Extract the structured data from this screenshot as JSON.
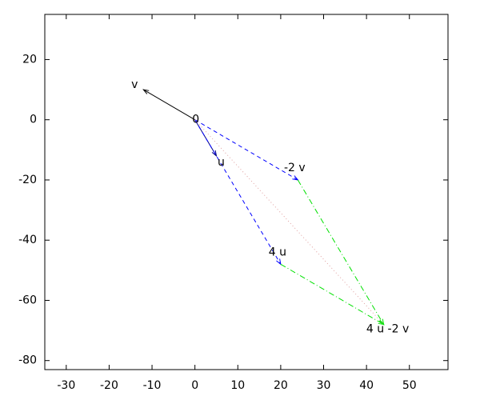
{
  "chart_data": {
    "type": "vector",
    "xlim": [
      -35,
      59
    ],
    "ylim": [
      -83,
      35
    ],
    "xticks": [
      -30,
      -20,
      -10,
      0,
      10,
      20,
      30,
      40,
      50
    ],
    "yticks": [
      20,
      0,
      -20,
      -40,
      -60,
      -80
    ],
    "series": [
      {
        "color": "#000000",
        "dash": "solid",
        "arrow": true,
        "x": [
          0,
          -12
        ],
        "y": [
          0,
          10
        ]
      },
      {
        "color": "#000080",
        "dash": "solid",
        "arrow": true,
        "x": [
          0,
          5
        ],
        "y": [
          0,
          -12
        ]
      },
      {
        "color": "#0000ff",
        "dash": "dashed",
        "arrow": true,
        "x": [
          0,
          24
        ],
        "y": [
          0,
          -20
        ]
      },
      {
        "color": "#0000ff",
        "dash": "dashed",
        "arrow": true,
        "x": [
          0,
          20
        ],
        "y": [
          0,
          -48
        ]
      },
      {
        "color": "#00e000",
        "dash": "dashdot",
        "arrow": true,
        "x": [
          24,
          44
        ],
        "y": [
          -20,
          -68
        ]
      },
      {
        "color": "#00e000",
        "dash": "dashdot",
        "arrow": true,
        "x": [
          20,
          44
        ],
        "y": [
          -48,
          -68
        ]
      },
      {
        "color": "#e0a0a0",
        "dash": "dotted",
        "arrow": false,
        "x": [
          0,
          44
        ],
        "y": [
          0,
          -68
        ]
      }
    ],
    "labels": [
      {
        "text": "0",
        "x": 0,
        "y": 0
      },
      {
        "text": "u",
        "x": 5,
        "y": -12
      },
      {
        "text": "v",
        "x": -12,
        "y": 10
      },
      {
        "text": "-2 v",
        "x": 24,
        "y": -20
      },
      {
        "text": "4 u",
        "x": 20,
        "y": -48
      },
      {
        "text": "4 u -2 v",
        "x": 44,
        "y": -68
      }
    ]
  }
}
